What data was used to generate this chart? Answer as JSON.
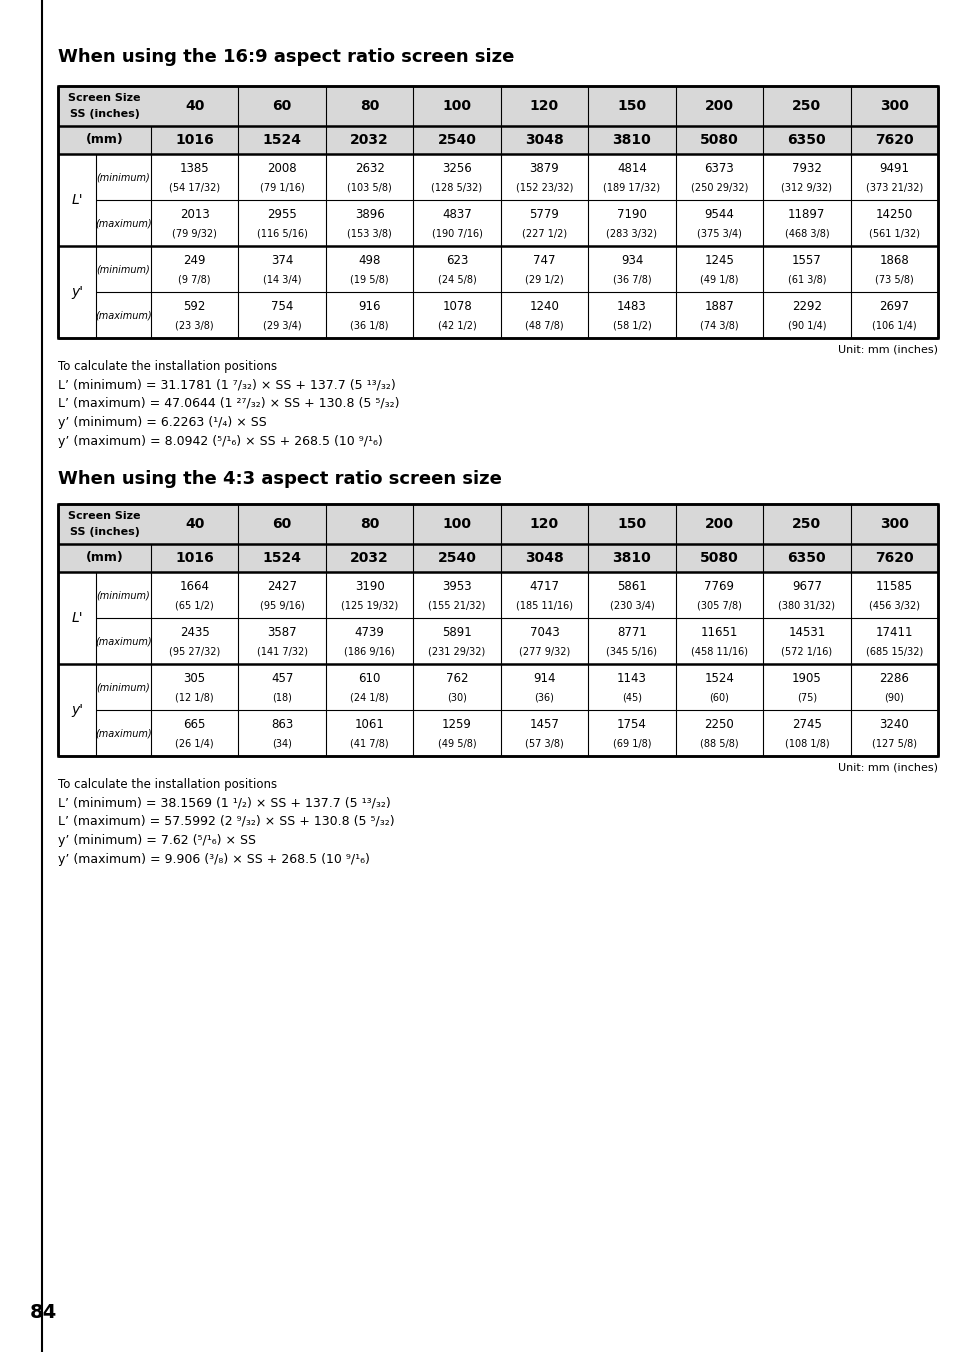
{
  "title1": "When using the 16:9 aspect ratio screen size",
  "title2": "When using the 4:3 aspect ratio screen size",
  "screen_sizes": [
    "40",
    "60",
    "80",
    "100",
    "120",
    "150",
    "200",
    "250",
    "300"
  ],
  "mm_values": [
    "1016",
    "1524",
    "2032",
    "2540",
    "3048",
    "3810",
    "5080",
    "6350",
    "7620"
  ],
  "table1": {
    "L_min_mm": [
      "1385",
      "2008",
      "2632",
      "3256",
      "3879",
      "4814",
      "6373",
      "7932",
      "9491"
    ],
    "L_min_in": [
      "(54 17/32)",
      "(79 1/16)",
      "(103 5/8)",
      "(128 5/32)",
      "(152 23/32)",
      "(189 17/32)",
      "(250 29/32)",
      "(312 9/32)",
      "(373 21/32)"
    ],
    "L_max_mm": [
      "2013",
      "2955",
      "3896",
      "4837",
      "5779",
      "7190",
      "9544",
      "11897",
      "14250"
    ],
    "L_max_in": [
      "(79 9/32)",
      "(116 5/16)",
      "(153 3/8)",
      "(190 7/16)",
      "(227 1/2)",
      "(283 3/32)",
      "(375 3/4)",
      "(468 3/8)",
      "(561 1/32)"
    ],
    "y_min_mm": [
      "249",
      "374",
      "498",
      "623",
      "747",
      "934",
      "1245",
      "1557",
      "1868"
    ],
    "y_min_in": [
      "(9 7/8)",
      "(14 3/4)",
      "(19 5/8)",
      "(24 5/8)",
      "(29 1/2)",
      "(36 7/8)",
      "(49 1/8)",
      "(61 3/8)",
      "(73 5/8)"
    ],
    "y_max_mm": [
      "592",
      "754",
      "916",
      "1078",
      "1240",
      "1483",
      "1887",
      "2292",
      "2697"
    ],
    "y_max_in": [
      "(23 3/8)",
      "(29 3/4)",
      "(36 1/8)",
      "(42 1/2)",
      "(48 7/8)",
      "(58 1/2)",
      "(74 3/8)",
      "(90 1/4)",
      "(106 1/4)"
    ]
  },
  "formulas1": [
    "To calculate the installation positions",
    "L’ (minimum) = 31.1781 (1 ⁷/₃₂) × SS + 137.7 (5 ¹³/₃₂)",
    "L’ (maximum) = 47.0644 (1 ²⁷/₃₂) × SS + 130.8 (5 ⁵/₃₂)",
    "y’ (minimum) = 6.2263 (¹/₄) × SS",
    "y’ (maximum) = 8.0942 (⁵/¹₆) × SS + 268.5 (10 ⁹/¹₆)"
  ],
  "table2": {
    "L_min_mm": [
      "1664",
      "2427",
      "3190",
      "3953",
      "4717",
      "5861",
      "7769",
      "9677",
      "11585"
    ],
    "L_min_in": [
      "(65 1/2)",
      "(95 9/16)",
      "(125 19/32)",
      "(155 21/32)",
      "(185 11/16)",
      "(230 3/4)",
      "(305 7/8)",
      "(380 31/32)",
      "(456 3/32)"
    ],
    "L_max_mm": [
      "2435",
      "3587",
      "4739",
      "5891",
      "7043",
      "8771",
      "11651",
      "14531",
      "17411"
    ],
    "L_max_in": [
      "(95 27/32)",
      "(141 7/32)",
      "(186 9/16)",
      "(231 29/32)",
      "(277 9/32)",
      "(345 5/16)",
      "(458 11/16)",
      "(572 1/16)",
      "(685 15/32)"
    ],
    "y_min_mm": [
      "305",
      "457",
      "610",
      "762",
      "914",
      "1143",
      "1524",
      "1905",
      "2286"
    ],
    "y_min_in": [
      "(12 1/8)",
      "(18)",
      "(24 1/8)",
      "(30)",
      "(36)",
      "(45)",
      "(60)",
      "(75)",
      "(90)"
    ],
    "y_max_mm": [
      "665",
      "863",
      "1061",
      "1259",
      "1457",
      "1754",
      "2250",
      "2745",
      "3240"
    ],
    "y_max_in": [
      "(26 1/4)",
      "(34)",
      "(41 7/8)",
      "(49 5/8)",
      "(57 3/8)",
      "(69 1/8)",
      "(88 5/8)",
      "(108 1/8)",
      "(127 5/8)"
    ]
  },
  "formulas2": [
    "To calculate the installation positions",
    "L’ (minimum) = 38.1569 (1 ¹/₂) × SS + 137.7 (5 ¹³/₃₂)",
    "L’ (maximum) = 57.5992 (2 ⁹/₃₂) × SS + 130.8 (5 ⁵/₃₂)",
    "y’ (minimum) = 7.62 (⁵/¹₆) × SS",
    "y’ (maximum) = 9.906 (³/₈) × SS + 268.5 (10 ⁹/¹₆)"
  ],
  "unit_text": "Unit: mm (inches)",
  "page_number": "84",
  "bg_color": "#ffffff"
}
